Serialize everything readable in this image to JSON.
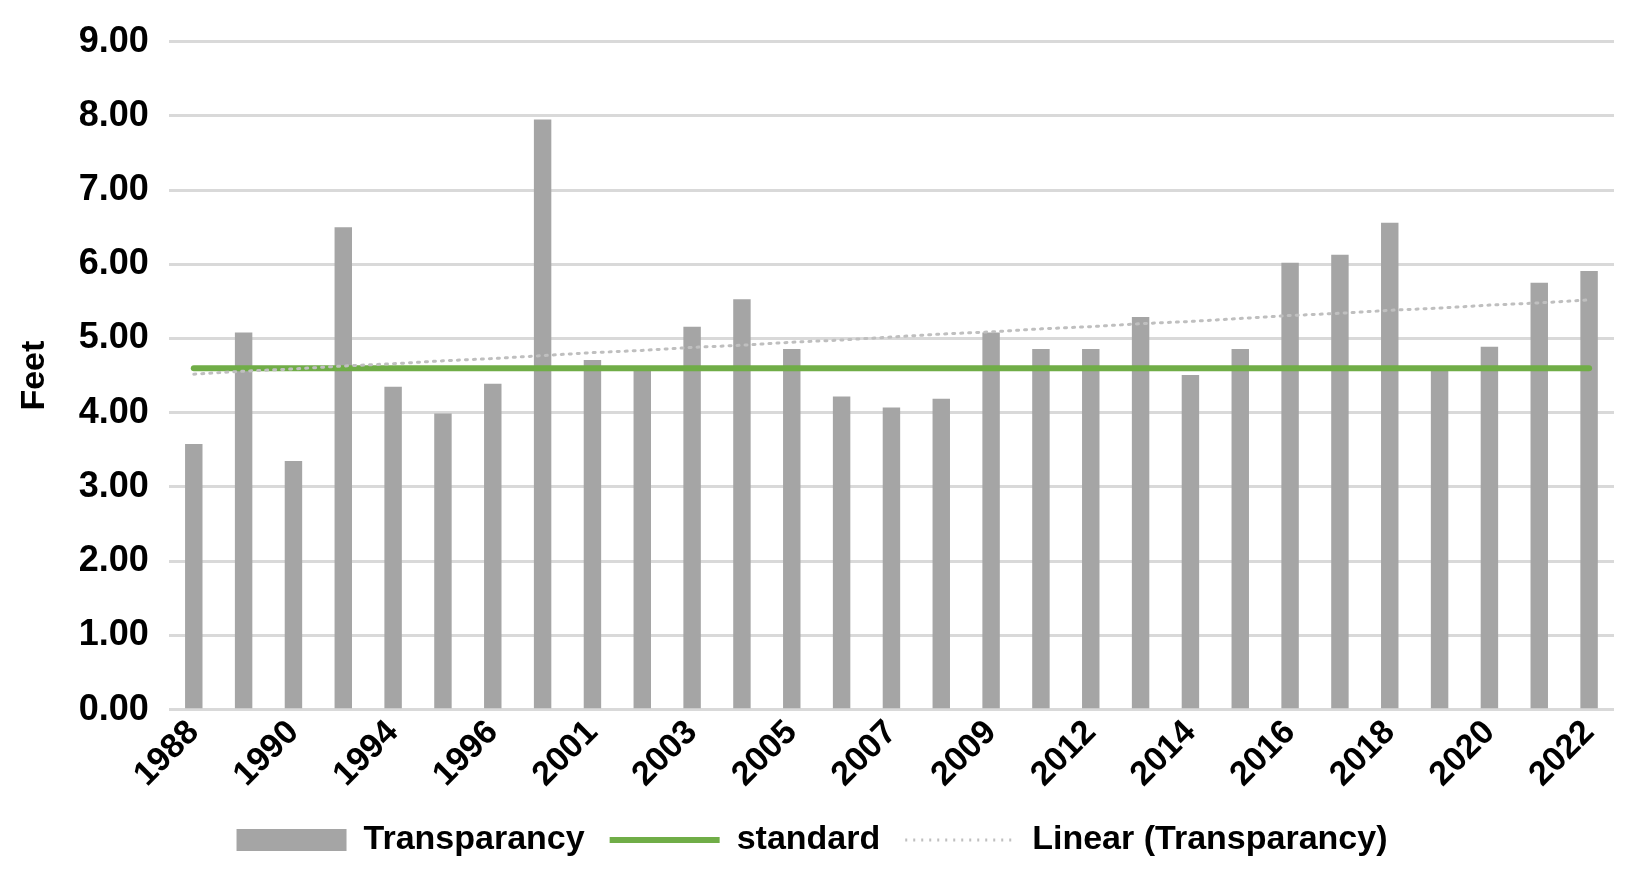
{
  "chart_data": {
    "type": "bar",
    "ylabel": "Feet",
    "categories": [
      "1988",
      null,
      "1990",
      null,
      "1994",
      null,
      "1996",
      null,
      "2001",
      null,
      "2003",
      null,
      "2005",
      null,
      "2007",
      null,
      "2009",
      null,
      "2012",
      null,
      "2014",
      null,
      "2016",
      null,
      "2018",
      null,
      "2020",
      null,
      "2022"
    ],
    "series": [
      {
        "name": "Transparancy",
        "color": "#a5a5a5",
        "values": [
          3.58,
          5.08,
          3.35,
          6.5,
          4.35,
          3.99,
          4.39,
          7.95,
          4.71,
          4.6,
          5.16,
          5.53,
          4.86,
          4.22,
          4.07,
          4.19,
          5.08,
          4.86,
          4.86,
          5.29,
          4.51,
          4.86,
          6.02,
          6.13,
          6.56,
          4.6,
          4.89,
          5.75,
          5.91
        ]
      },
      {
        "name": "standard",
        "type": "line",
        "color": "#70ad47",
        "line_style": "solid",
        "values": [
          4.6,
          4.6,
          4.6,
          4.6,
          4.6,
          4.6,
          4.6,
          4.6,
          4.6,
          4.6,
          4.6,
          4.6,
          4.6,
          4.6,
          4.6,
          4.6,
          4.6,
          4.6,
          4.6,
          4.6,
          4.6,
          4.6,
          4.6,
          4.6,
          4.6,
          4.6,
          4.6,
          4.6,
          4.6
        ]
      },
      {
        "name": "Linear (Transparancy)",
        "type": "line",
        "color": "#bfbfbf",
        "line_style": "dotted",
        "values": [
          4.52,
          4.56,
          4.59,
          4.63,
          4.66,
          4.7,
          4.73,
          4.77,
          4.81,
          4.84,
          4.88,
          4.91,
          4.95,
          4.98,
          5.02,
          5.06,
          5.09,
          5.13,
          5.16,
          5.2,
          5.23,
          5.27,
          5.31,
          5.34,
          5.38,
          5.41,
          5.45,
          5.48,
          5.52
        ]
      }
    ],
    "ylim": [
      0,
      9
    ],
    "yticks": [
      {
        "value": 0,
        "label": "0.00"
      },
      {
        "value": 1,
        "label": "1.00"
      },
      {
        "value": 2,
        "label": "2.00"
      },
      {
        "value": 3,
        "label": "3.00"
      },
      {
        "value": 4,
        "label": "4.00"
      },
      {
        "value": 5,
        "label": "5.00"
      },
      {
        "value": 6,
        "label": "6.00"
      },
      {
        "value": 7,
        "label": "7.00"
      },
      {
        "value": 8,
        "label": "8.00"
      },
      {
        "value": 9,
        "label": "9.00"
      }
    ],
    "grid": "y",
    "legend": "bottom",
    "marker": "none"
  }
}
